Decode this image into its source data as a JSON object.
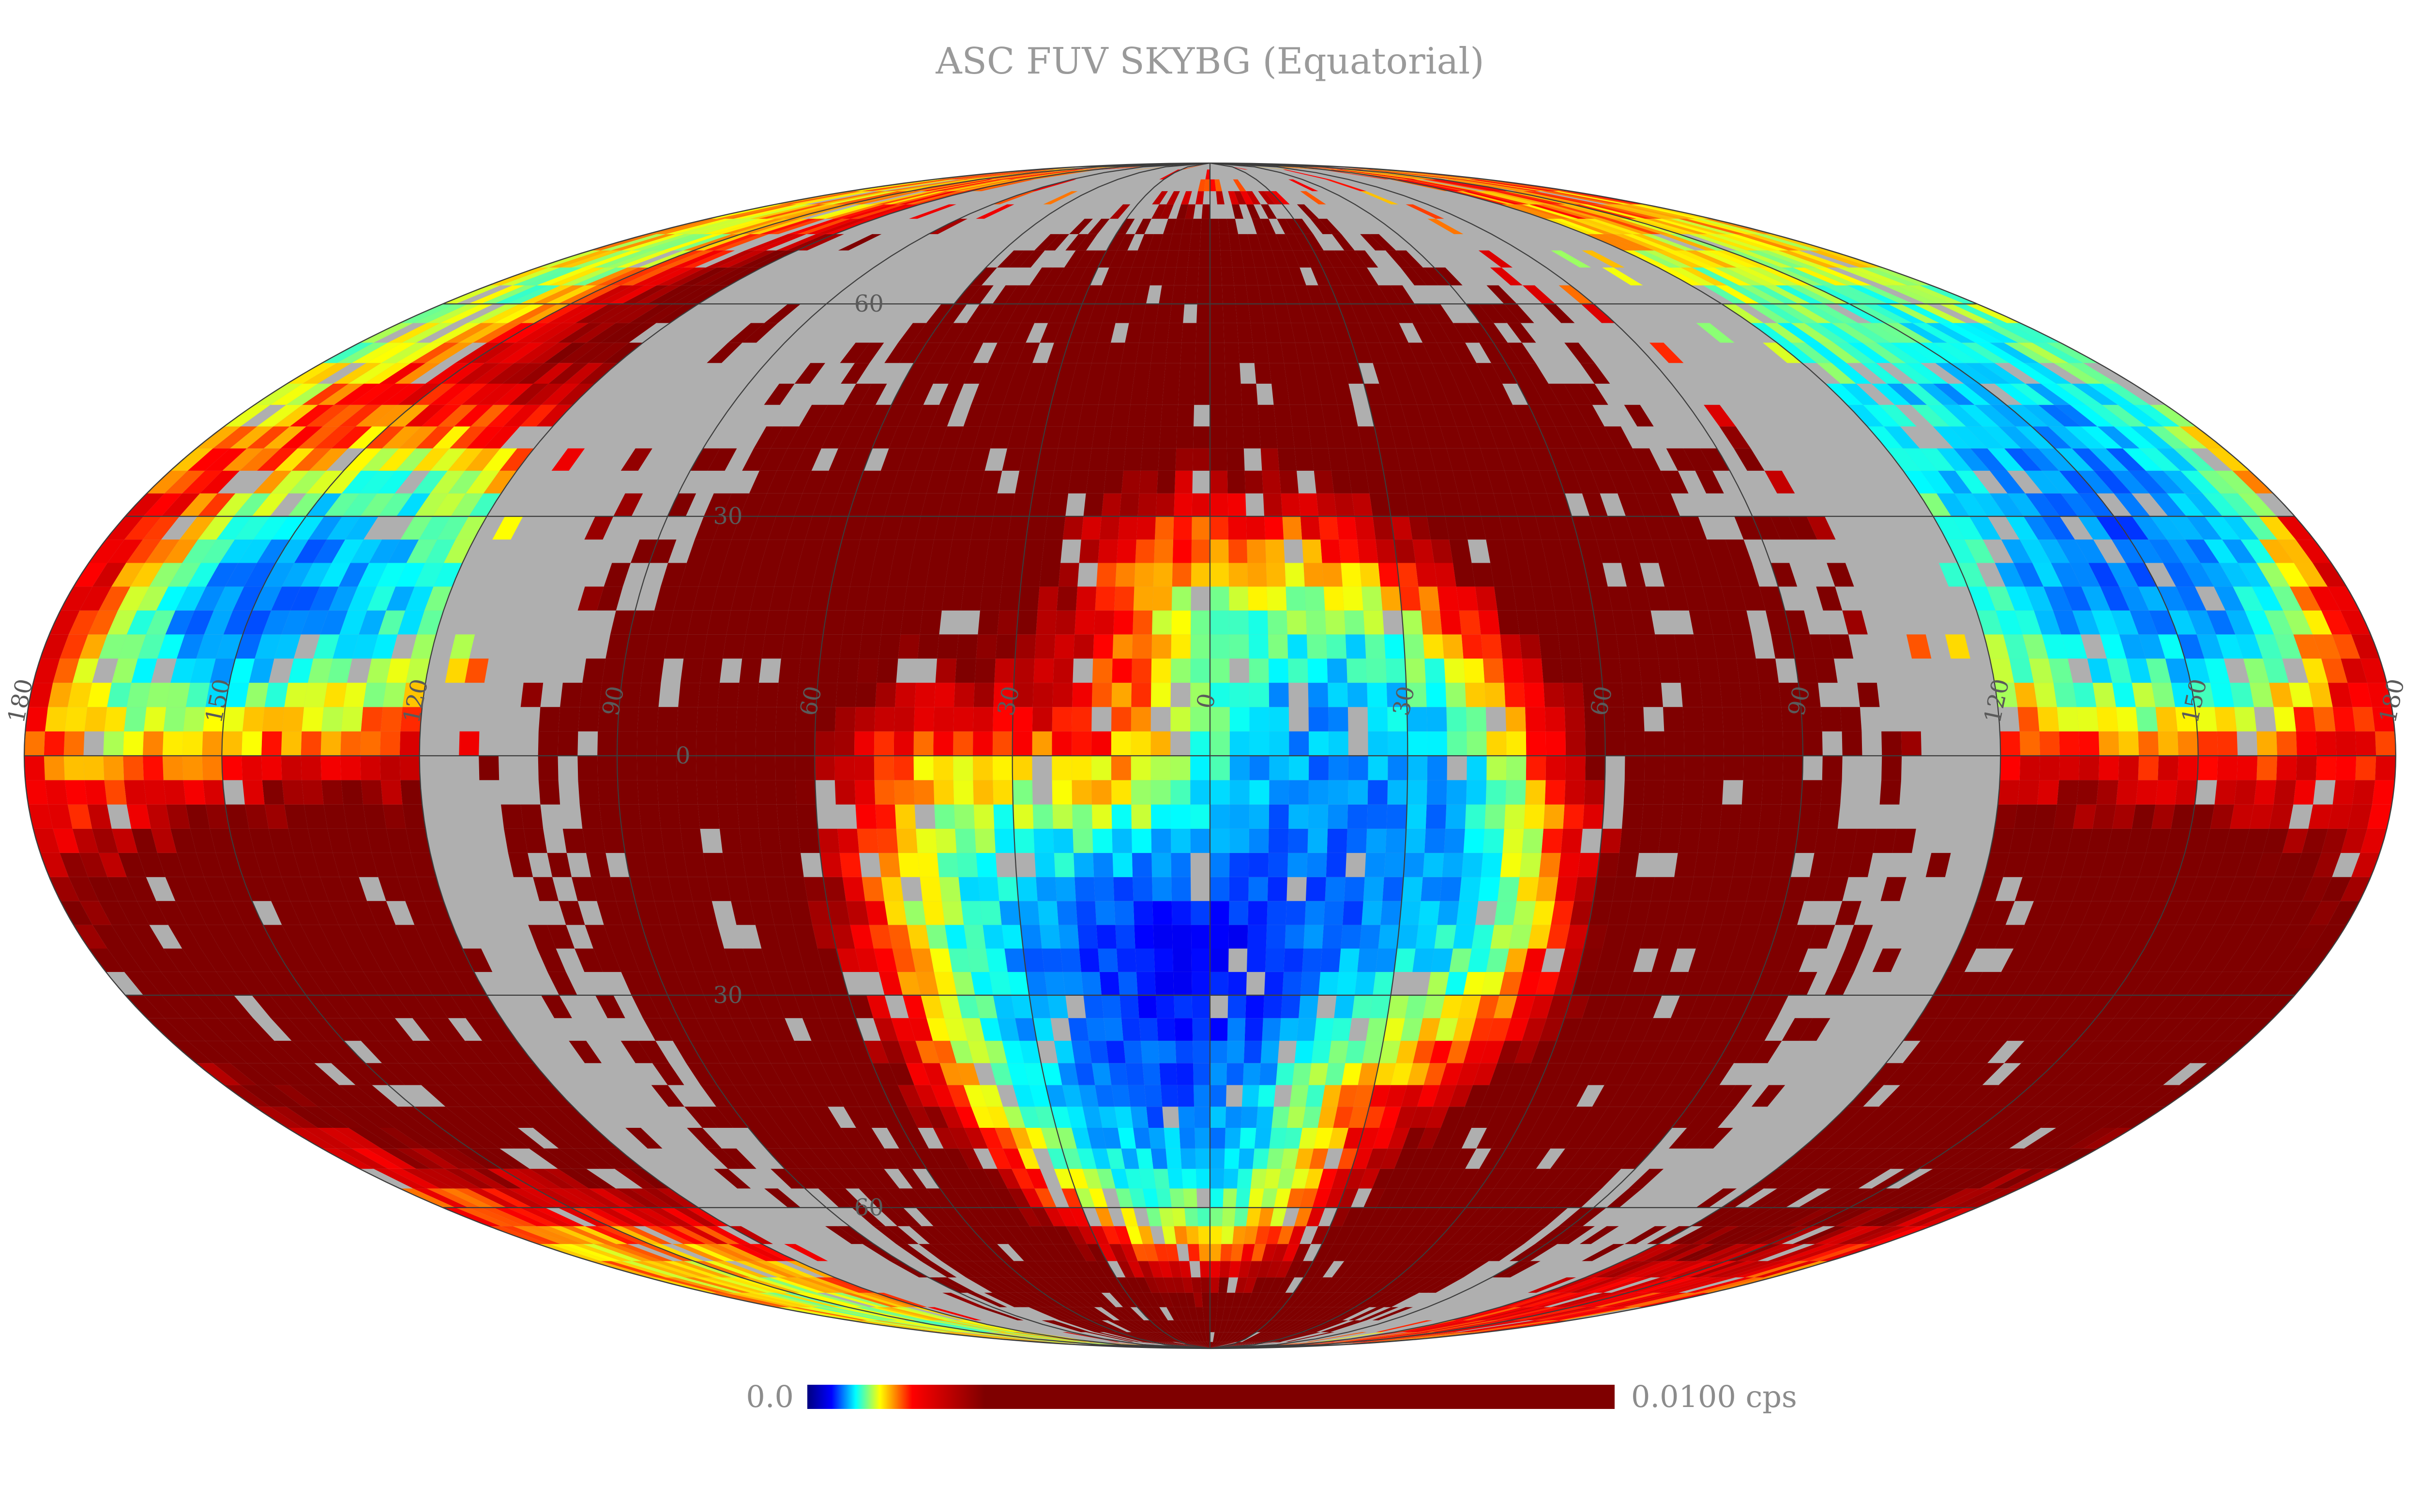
{
  "title": "ASC FUV SKYBG (Equatorial)",
  "projection": "Mollweide",
  "colorbar": {
    "min_label": "0.0",
    "max_label": "0.0100 cps",
    "min": 0.0,
    "max": 0.01,
    "unit": "cps",
    "colormap": "jet",
    "colors": [
      "#00007f",
      "#0000ff",
      "#00ffff",
      "#ffff00",
      "#ff0000",
      "#7f0000",
      "#7f0000"
    ]
  },
  "map": {
    "background_color": "#afafaf",
    "missing_data_color": "#afafaf",
    "grid": true,
    "features": [
      {
        "name": "south-central-low",
        "lon": 0,
        "lat": -25,
        "rx": 72,
        "ry": 50,
        "value": 0.0003
      },
      {
        "name": "east-edge-low",
        "lon": -150,
        "lat": 15,
        "rx": 50,
        "ry": 70,
        "value": 0.0004
      },
      {
        "name": "west-edge-low",
        "lon": 150,
        "lat": 15,
        "rx": 50,
        "ry": 60,
        "value": 0.0004
      },
      {
        "name": "north-cap",
        "lon": 0,
        "lat": 85,
        "rx": 360,
        "ry": 14,
        "value": 0.0012
      },
      {
        "name": "east-south-ridge",
        "lon": -135,
        "lat": -35,
        "rx": 45,
        "ry": 25,
        "value": 0.006
      },
      {
        "name": "west-south-ridge",
        "lon": 130,
        "lat": -30,
        "rx": 45,
        "ry": 22,
        "value": 0.006
      }
    ]
  },
  "graticule": {
    "meridians": [
      -180,
      -150,
      -120,
      -90,
      -60,
      -30,
      0,
      30,
      60,
      90,
      120,
      150,
      180
    ],
    "parallels": [
      -60,
      -30,
      0,
      30,
      60
    ],
    "meridian_labels": [
      "180",
      "150",
      "120",
      "90",
      "60",
      "30",
      "0",
      "30",
      "60",
      "90",
      "120",
      "150",
      "180"
    ],
    "parallel_labels": [
      "60",
      "30",
      "0",
      "30",
      "60"
    ],
    "meridian_label_lons": [
      180,
      150,
      120,
      90,
      60,
      30,
      0,
      -30,
      -60,
      -90,
      -120,
      -150,
      -180
    ],
    "parallel_label_lats": [
      60,
      30,
      0,
      -30,
      -60
    ]
  }
}
